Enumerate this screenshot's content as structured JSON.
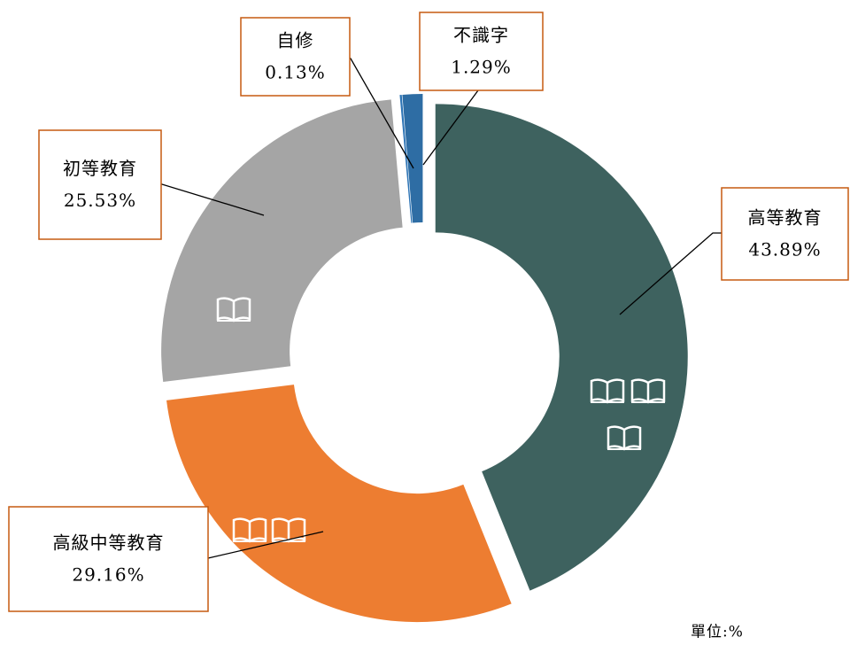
{
  "chart_data": {
    "type": "donut",
    "categories": [
      "高等教育",
      "高級中等教育",
      "初等教育",
      "自修",
      "不識字"
    ],
    "values": [
      43.89,
      29.16,
      25.53,
      0.13,
      1.29
    ],
    "value_labels": [
      "43.89%",
      "29.16%",
      "25.53%",
      "0.13%",
      "1.29%"
    ],
    "colors": [
      "#3e625f",
      "#ed7d31",
      "#a5a5a5",
      "#2e75b6",
      "#2e6da4"
    ],
    "note": "單位:%"
  }
}
